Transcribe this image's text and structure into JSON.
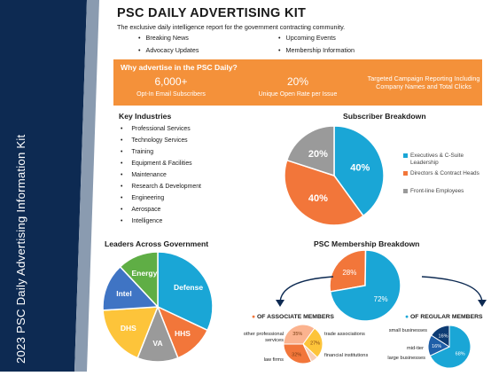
{
  "sidebar": {
    "title": "2023 PSC Daily Advertising Information Kit"
  },
  "header": {
    "title": "PSC DAILY ADVERTISING KIT",
    "tagline": "The exclusive daily intelligence report for the government contracting community.",
    "features": [
      "Breaking News",
      "Advocacy Updates",
      "Upcoming Events",
      "Membership Information"
    ]
  },
  "banner": {
    "question": "Why advertise in the PSC Daily?",
    "stats": [
      {
        "value": "6,000+",
        "label": "Opt-In Email Subscribers"
      },
      {
        "value": "20%",
        "label": "Unique Open Rate per Issue"
      },
      {
        "value": "",
        "label": "Targeted Campaign Reporting Including Company Names and Total Clicks"
      }
    ],
    "color": "#f4913a"
  },
  "key_industries": {
    "title": "Key Industries",
    "items": [
      "Professional Services",
      "Technology Services",
      "Training",
      "Equipment & Facilities",
      "Maintenance",
      "Research & Development",
      "Engineering",
      "Aerospace",
      "Intelligence"
    ]
  },
  "chart_data": [
    {
      "type": "pie",
      "title": "Subscriber Breakdown",
      "labels": [
        "Executives & C-Suite Leadership",
        "Directors & Contract Heads",
        "Front-line Employees"
      ],
      "values": [
        40,
        40,
        20
      ],
      "value_labels": [
        "40%",
        "40%",
        "20%"
      ],
      "colors": [
        "#1aa6d6",
        "#f2763a",
        "#9a9a9a"
      ],
      "legend": "right"
    },
    {
      "type": "pie",
      "title": "Leaders Across Government",
      "labels": [
        "Defense",
        "HHS",
        "VA",
        "DHS",
        "Intel",
        "Energy"
      ],
      "values": [
        32,
        12,
        12,
        18,
        14,
        12
      ],
      "colors": [
        "#1aa6d6",
        "#f2763a",
        "#9a9a9a",
        "#fdc43a",
        "#3f74c4",
        "#5fae45"
      ]
    },
    {
      "type": "pie",
      "title": "PSC Membership Breakdown",
      "labels": [
        "associate members",
        "regular members"
      ],
      "values": [
        28,
        72
      ],
      "value_labels": [
        "28%",
        "72%"
      ],
      "colors": [
        "#f2763a",
        "#1aa6d6"
      ]
    },
    {
      "type": "pie",
      "title": "OF ASSOCIATE MEMBERS",
      "labels": [
        "other professional services",
        "law firms",
        "trade associations",
        "financial institutions"
      ],
      "values": [
        35,
        27,
        6,
        32
      ],
      "value_labels": [
        "35%",
        "27%",
        "",
        "32%"
      ],
      "colors": [
        "#fbb38f",
        "#fdc43a",
        "#f8cdb5",
        "#f2763a"
      ]
    },
    {
      "type": "pie",
      "title": "OF REGULAR MEMBERS",
      "labels": [
        "small businesses",
        "mid-tier",
        "large businesses"
      ],
      "values": [
        68,
        16,
        16
      ],
      "value_labels": [
        "68%",
        "16%",
        "16%"
      ],
      "colors": [
        "#1aa6d6",
        "#1f5fa8",
        "#0d3b73"
      ]
    }
  ]
}
